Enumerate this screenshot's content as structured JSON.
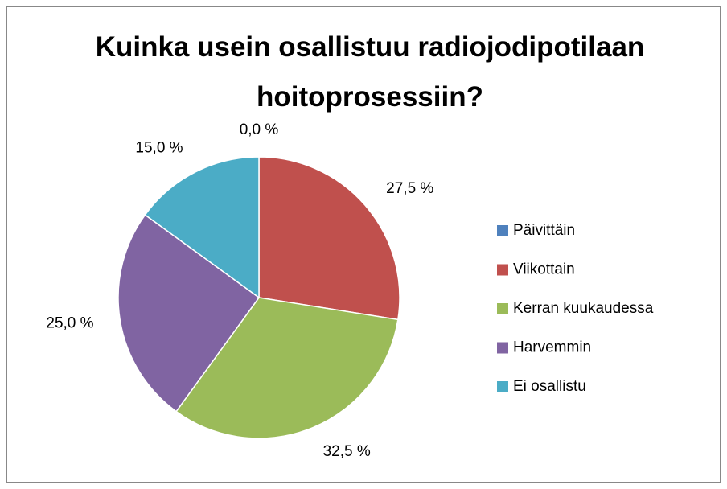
{
  "chart_data": {
    "type": "pie",
    "title": "Kuinka usein osallistuu radiojodipotilaan hoitoprosessiin?",
    "categories": [
      "Päivittäin",
      "Viikottain",
      "Kerran kuukaudessa",
      "Harvemmin",
      "Ei osallistu"
    ],
    "values": [
      0,
      27.5,
      32.5,
      25,
      15
    ],
    "value_labels": [
      "0,0 %",
      "27,5 %",
      "32,5 %",
      "25,0 %",
      "15,0 %"
    ],
    "colors": [
      "#4f81bd",
      "#c0504d",
      "#9bbb59",
      "#8064a2",
      "#4bacc6"
    ],
    "legend": "right"
  }
}
